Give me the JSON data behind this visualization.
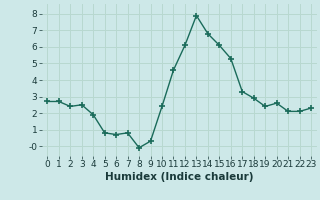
{
  "x": [
    0,
    1,
    2,
    3,
    4,
    5,
    6,
    7,
    8,
    9,
    10,
    11,
    12,
    13,
    14,
    15,
    16,
    17,
    18,
    19,
    20,
    21,
    22,
    23
  ],
  "y": [
    2.7,
    2.7,
    2.4,
    2.5,
    1.9,
    0.8,
    0.7,
    0.8,
    -0.1,
    0.3,
    2.4,
    4.6,
    6.1,
    7.9,
    6.8,
    6.1,
    5.3,
    3.3,
    2.9,
    2.4,
    2.6,
    2.1,
    2.1,
    2.3
  ],
  "line_color": "#1a6b5a",
  "marker": "+",
  "marker_size": 4,
  "marker_lw": 1.2,
  "bg_color": "#cde8e8",
  "grid_color": "#b8d8d0",
  "xlabel": "Humidex (Indice chaleur)",
  "xlabel_fontsize": 7.5,
  "ylim": [
    -0.6,
    8.6
  ],
  "xlim": [
    -0.5,
    23.5
  ],
  "yticks": [
    0,
    1,
    2,
    3,
    4,
    5,
    6,
    7,
    8
  ],
  "ytick_labels": [
    "-0",
    "1",
    "2",
    "3",
    "4",
    "5",
    "6",
    "7",
    "8"
  ],
  "xticks": [
    0,
    1,
    2,
    3,
    4,
    5,
    6,
    7,
    8,
    9,
    10,
    11,
    12,
    13,
    14,
    15,
    16,
    17,
    18,
    19,
    20,
    21,
    22,
    23
  ],
  "tick_fontsize": 6.5,
  "linewidth": 1.0
}
